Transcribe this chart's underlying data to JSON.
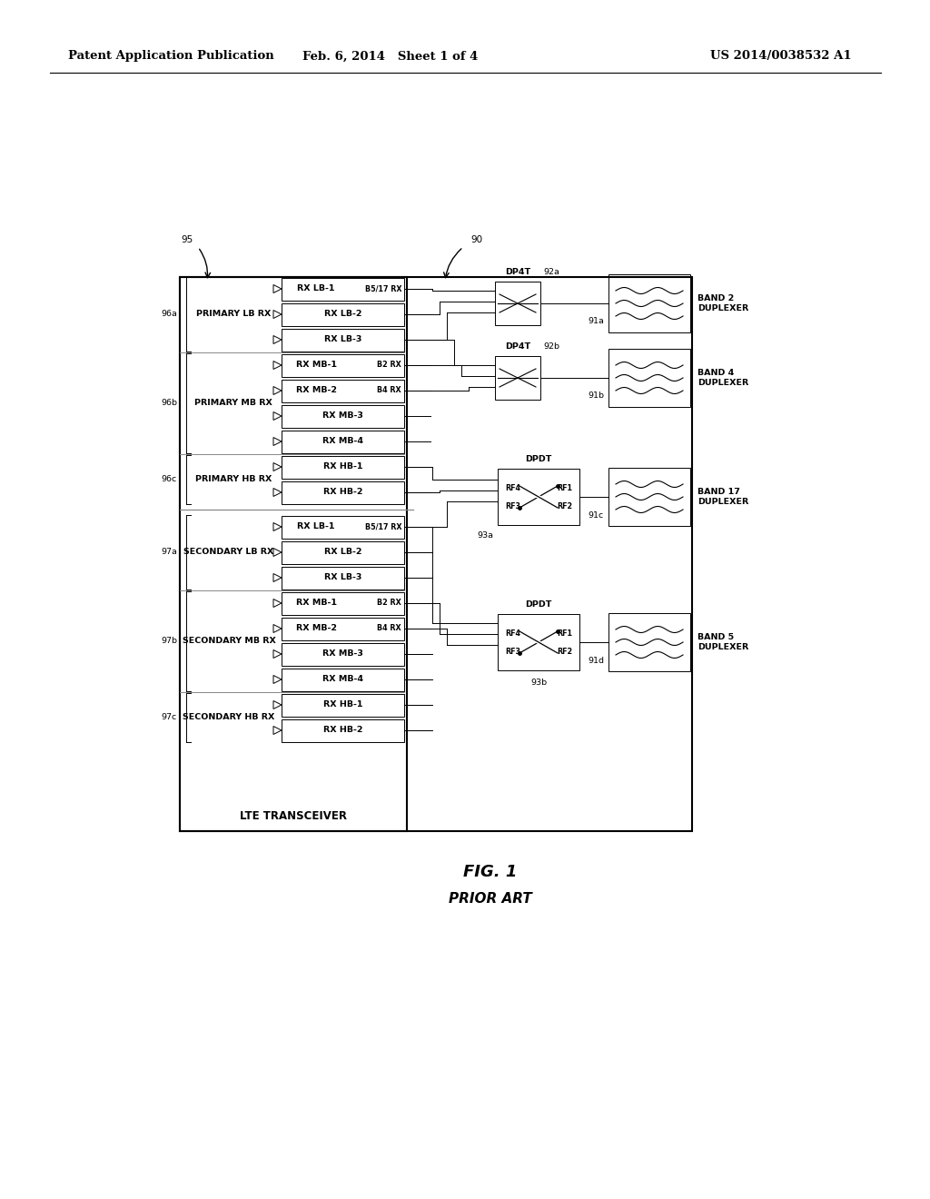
{
  "bg_color": "#ffffff",
  "header_left": "Patent Application Publication",
  "header_mid": "Feb. 6, 2014   Sheet 1 of 4",
  "header_right": "US 2014/0038532 A1",
  "fig_label": "FIG. 1",
  "fig_sublabel": "PRIOR ART",
  "primary_lb_rx": "PRIMARY LB RX",
  "primary_mb_rx": "PRIMARY MB RX",
  "primary_hb_rx": "PRIMARY HB RX",
  "secondary_lb_rx": "SECONDARY LB RX",
  "secondary_mb_rx": "SECONDARY MB RX",
  "secondary_hb_rx": "SECONDARY HB RX",
  "lte_transceiver": "LTE TRANSCEIVER",
  "band2": "BAND 2\nDUPLEXER",
  "band4": "BAND 4\nDUPLEXER",
  "band17": "BAND 17\nDUPLEXER",
  "band5": "BAND 5\nDUPLEXER",
  "dp4t": "DP4T",
  "dpdt": "DPDT",
  "rows_primary": [
    {
      "label": "RX LB-1",
      "sub": "B5/17 RX"
    },
    {
      "label": "RX LB-2",
      "sub": ""
    },
    {
      "label": "RX LB-3",
      "sub": ""
    },
    {
      "label": "RX MB-1",
      "sub": "B2 RX"
    },
    {
      "label": "RX MB-2",
      "sub": "B4 RX"
    },
    {
      "label": "RX MB-3",
      "sub": ""
    },
    {
      "label": "RX MB-4",
      "sub": ""
    },
    {
      "label": "RX HB-1",
      "sub": ""
    },
    {
      "label": "RX HB-2",
      "sub": ""
    }
  ],
  "rows_secondary": [
    {
      "label": "RX LB-1",
      "sub": "B5/17 RX"
    },
    {
      "label": "RX LB-2",
      "sub": ""
    },
    {
      "label": "RX LB-3",
      "sub": ""
    },
    {
      "label": "RX MB-1",
      "sub": "B2 RX"
    },
    {
      "label": "RX MB-2",
      "sub": "B4 RX"
    },
    {
      "label": "RX MB-3",
      "sub": ""
    },
    {
      "label": "RX MB-4",
      "sub": ""
    },
    {
      "label": "RX HB-1",
      "sub": ""
    },
    {
      "label": "RX HB-2",
      "sub": ""
    }
  ]
}
